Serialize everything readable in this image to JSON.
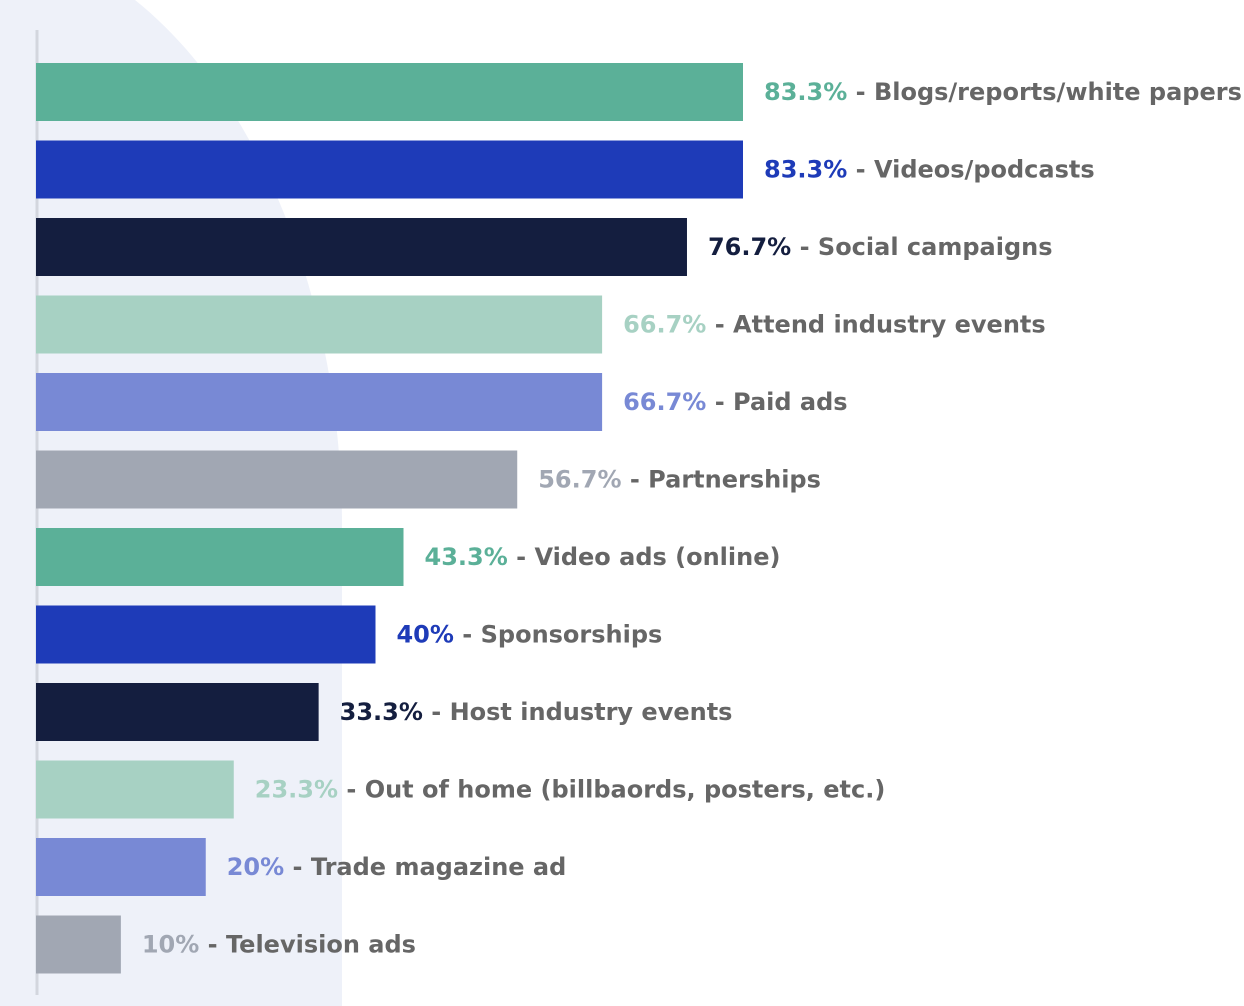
{
  "chart_data": {
    "type": "bar",
    "orientation": "horizontal",
    "value_unit": "%",
    "xlim": [
      0,
      100
    ],
    "grid": false,
    "legend": "none",
    "title": "",
    "xlabel": "",
    "ylabel": "",
    "categories": [
      "Blogs/reports/white papers",
      "Videos/podcasts",
      "Social campaigns",
      "Attend industry events",
      "Paid ads",
      "Partnerships",
      "Video ads (online)",
      "Sponsorships",
      "Host industry events",
      "Out of home (billbaords, posters, etc.)",
      "Trade magazine ad",
      "Television ads"
    ],
    "values": [
      83.3,
      83.3,
      76.7,
      66.7,
      66.7,
      56.7,
      43.3,
      40,
      33.3,
      23.3,
      20,
      10
    ],
    "value_labels": [
      "83.3%",
      "83.3%",
      "76.7%",
      "66.7%",
      "66.7%",
      "56.7%",
      "43.3%",
      "40%",
      "33.3%",
      "23.3%",
      "20%",
      "10%"
    ],
    "separator": "-",
    "colors": [
      "#5BB098",
      "#1E3BB8",
      "#141E3F",
      "#A7D1C3",
      "#7889D5",
      "#A1A7B3",
      "#5BB098",
      "#1E3BB8",
      "#141E3F",
      "#A7D1C3",
      "#7889D5",
      "#A1A7B3"
    ],
    "label_text_color": "#666666",
    "background_accent_color": "#EEF1F9",
    "axis_color": "#D3D6DE"
  }
}
